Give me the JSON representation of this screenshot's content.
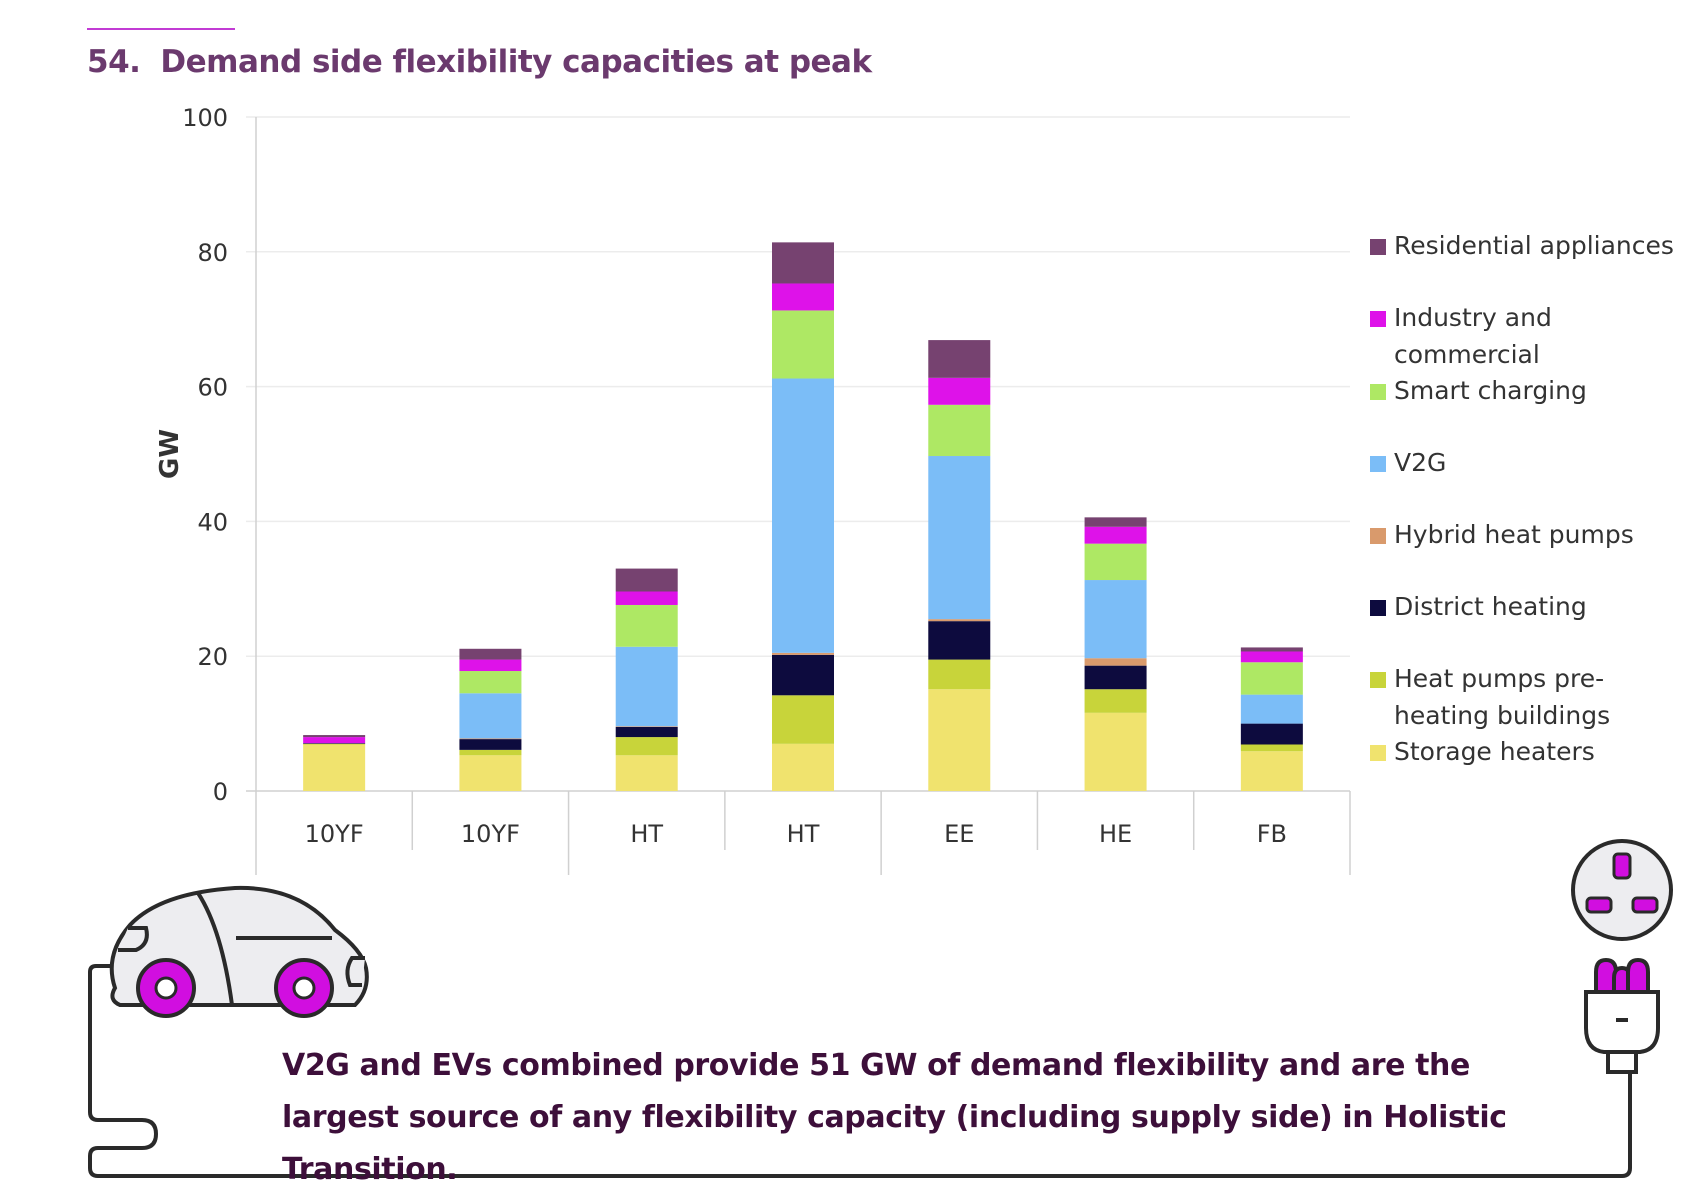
{
  "header": {
    "figure_number": "54.",
    "title": "Demand side flexibility capacities at peak"
  },
  "chart_data": {
    "type": "bar",
    "stacked": true,
    "title": "Demand side flexibility capacities at peak",
    "ylabel": "GW",
    "xlabel": "",
    "ylim": [
      0,
      100
    ],
    "yticks": [
      0,
      20,
      40,
      60,
      80,
      100
    ],
    "grid": true,
    "legend_position": "right",
    "categories": [
      "10YF",
      "10YF",
      "HT",
      "HT",
      "EE",
      "HE",
      "FB"
    ],
    "series": [
      {
        "name": "Storage heaters",
        "color": "#f0e36e",
        "values": [
          6.9,
          5.3,
          5.3,
          7.0,
          15.1,
          11.6,
          5.9
        ]
      },
      {
        "name": "Heat pumps pre-heating buildings",
        "color": "#c8d43a",
        "values": [
          0.1,
          0.8,
          2.7,
          7.2,
          4.4,
          3.5,
          1.0
        ]
      },
      {
        "name": "District heating",
        "color": "#0d0b3e",
        "values": [
          0.1,
          1.6,
          1.5,
          6.0,
          5.7,
          3.5,
          3.1
        ]
      },
      {
        "name": "Hybrid heat pumps",
        "color": "#d99a6c",
        "values": [
          0.0,
          0.1,
          0.1,
          0.3,
          0.3,
          1.1,
          0.0
        ]
      },
      {
        "name": "V2G",
        "color": "#7bbdf7",
        "values": [
          0.0,
          6.7,
          11.8,
          40.7,
          24.2,
          11.6,
          4.3
        ]
      },
      {
        "name": "Smart charging",
        "color": "#aee864",
        "values": [
          0.0,
          3.3,
          6.2,
          10.1,
          7.6,
          5.4,
          4.8
        ]
      },
      {
        "name": "Industry and commercial",
        "color": "#de12e9",
        "values": [
          0.9,
          1.7,
          2.0,
          4.0,
          4.0,
          2.5,
          1.6
        ]
      },
      {
        "name": "Residential appliances",
        "color": "#764270",
        "values": [
          0.3,
          1.6,
          3.4,
          6.1,
          5.6,
          1.4,
          0.6
        ]
      }
    ]
  },
  "legend": {
    "items": [
      {
        "label": "Residential appliances",
        "color": "#764270"
      },
      {
        "label": "Industry and commercial",
        "color": "#de12e9"
      },
      {
        "label": "Smart charging",
        "color": "#aee864"
      },
      {
        "label": "V2G",
        "color": "#7bbdf7"
      },
      {
        "label": "Hybrid heat pumps",
        "color": "#d99a6c"
      },
      {
        "label": "District heating",
        "color": "#0d0b3e"
      },
      {
        "label": "Heat pumps pre-heating buildings",
        "color": "#c8d43a"
      },
      {
        "label": "Storage heaters",
        "color": "#f0e36e"
      }
    ]
  },
  "caption": {
    "text": "V2G and EVs combined provide 51 GW of demand flexibility and are the largest source of any flexibility capacity (including supply side) in Holistic Transition."
  },
  "illustration": {
    "car_icon": "ev-car-icon",
    "socket_icon": "power-socket-icon",
    "plug_icon": "power-plug-icon",
    "accent_color": "#d10ee0"
  }
}
